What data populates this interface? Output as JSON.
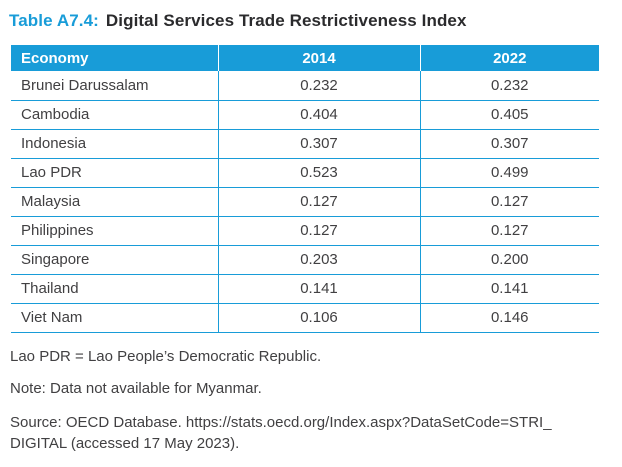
{
  "page": {
    "title_label": "Table A7.4:",
    "title_text": "Digital Services Trade Restrictiveness Index"
  },
  "table": {
    "headers": {
      "economy": "Economy",
      "y2014": "2014",
      "y2022": "2022"
    },
    "rows": [
      {
        "economy": "Brunei Darussalam",
        "y2014": "0.232",
        "y2022": "0.232"
      },
      {
        "economy": "Cambodia",
        "y2014": "0.404",
        "y2022": "0.405"
      },
      {
        "economy": "Indonesia",
        "y2014": "0.307",
        "y2022": "0.307"
      },
      {
        "economy": "Lao PDR",
        "y2014": "0.523",
        "y2022": "0.499"
      },
      {
        "economy": "Malaysia",
        "y2014": "0.127",
        "y2022": "0.127"
      },
      {
        "economy": "Philippines",
        "y2014": "0.127",
        "y2022": "0.127"
      },
      {
        "economy": "Singapore",
        "y2014": "0.203",
        "y2022": "0.200"
      },
      {
        "economy": "Thailand",
        "y2014": "0.141",
        "y2022": "0.141"
      },
      {
        "economy": "Viet Nam",
        "y2014": "0.106",
        "y2022": "0.146"
      }
    ]
  },
  "footnotes": {
    "abbreviation": "Lao PDR = Lao People’s Democratic Republic.",
    "note": "Note: Data not available for Myanmar.",
    "source_line1": "Source: OECD Database. https://stats.oecd.org/Index.aspx?DataSetCode=STRI_",
    "source_line2": "DIGITAL (accessed 17 May 2023)."
  },
  "colors": {
    "accent_blue": "#189cd8",
    "header_text": "#ffffff",
    "body_text": "#414042"
  }
}
